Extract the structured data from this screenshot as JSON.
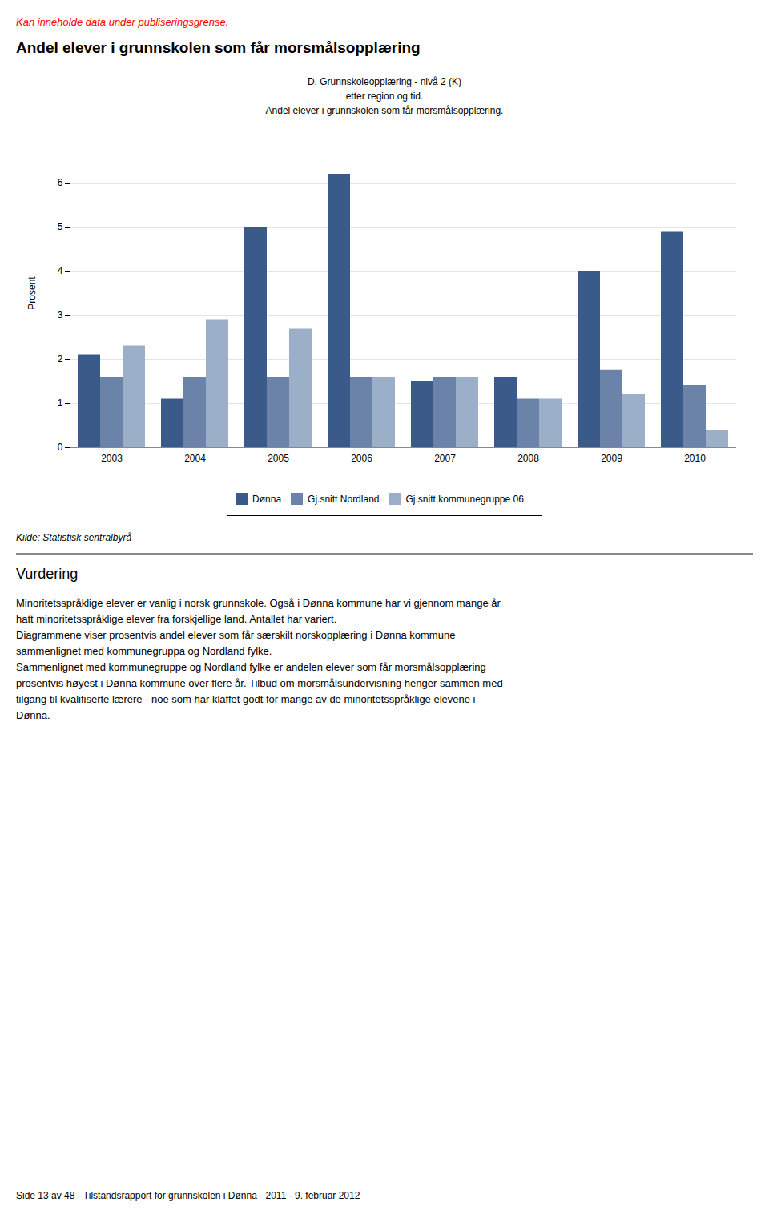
{
  "warning_text": "Kan inneholde data under publiseringsgrense.",
  "page_title": "Andel elever i grunnskolen som får morsmålsopplæring",
  "chart_data": {
    "type": "bar",
    "title": "D. Grunnskoleopplæring - nivå 2 (K)",
    "subtitle": [
      "etter region og tid.",
      "Andel elever i grunnskolen som får morsmålsopplæring."
    ],
    "ylabel": "Prosent",
    "categories": [
      "2003",
      "2004",
      "2005",
      "2006",
      "2007",
      "2008",
      "2009",
      "2010"
    ],
    "series": [
      {
        "name": "Dønna",
        "color": "#3A5A8A",
        "values": [
          2.1,
          1.1,
          5.0,
          6.2,
          1.5,
          1.6,
          4.0,
          4.9
        ]
      },
      {
        "name": "Gj.snitt Nordland",
        "color": "#6B83A8",
        "values": [
          1.6,
          1.6,
          1.6,
          1.6,
          1.6,
          1.1,
          1.75,
          1.4
        ]
      },
      {
        "name": "Gj.snitt kommunegruppe 06",
        "color": "#9BB0C8",
        "values": [
          2.3,
          2.9,
          2.7,
          1.6,
          1.6,
          1.1,
          1.2,
          0.4
        ]
      }
    ],
    "ylim": [
      0,
      7
    ],
    "yticks": [
      0,
      1,
      2,
      3,
      4,
      5,
      6
    ],
    "grid": true,
    "legend": "bottom"
  },
  "source": "Kilde: Statistisk sentralbyrå",
  "section_title": "Vurdering",
  "body_lines": [
    "Minoritetsspråklige elever er vanlig i norsk grunnskole. Også i Dønna kommune har vi gjennom mange år",
    "hatt minoritetsspråklige elever fra forskjellige land. Antallet har variert.",
    "Diagrammene viser prosentvis andel elever som får særskilt norskopplæring i Dønna kommune",
    "sammenlignet med kommunegruppa og Nordland fylke.",
    "Sammenlignet med kommunegruppe og Nordland fylke er andelen elever som får morsmålsopplæring",
    "prosentvis høyest i Dønna kommune over flere år. Tilbud om morsmålsundervisning henger sammen med",
    "tilgang til kvalifiserte lærere - noe som har klaffet godt for mange av de minoritetsspråklige elevene i",
    "Dønna."
  ],
  "footer": "Side 13 av 48 - Tilstandsrapport for grunnskolen i Dønna - 2011 - 9. februar 2012"
}
